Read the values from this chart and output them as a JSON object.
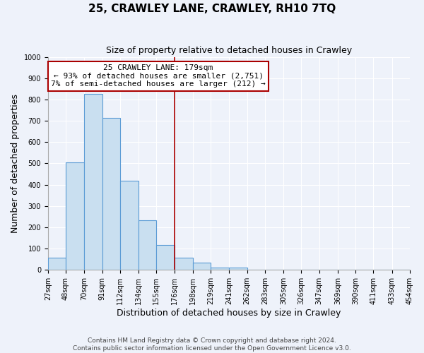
{
  "title": "25, CRAWLEY LANE, CRAWLEY, RH10 7TQ",
  "subtitle": "Size of property relative to detached houses in Crawley",
  "xlabel": "Distribution of detached houses by size in Crawley",
  "ylabel": "Number of detached properties",
  "footer_lines": [
    "Contains HM Land Registry data © Crown copyright and database right 2024.",
    "Contains public sector information licensed under the Open Government Licence v3.0."
  ],
  "bin_edges": [
    27,
    48,
    70,
    91,
    112,
    134,
    155,
    176,
    198,
    219,
    241,
    262,
    283,
    305,
    326,
    347,
    369,
    390,
    411,
    433,
    454
  ],
  "bin_labels": [
    "27sqm",
    "48sqm",
    "70sqm",
    "91sqm",
    "112sqm",
    "134sqm",
    "155sqm",
    "176sqm",
    "198sqm",
    "219sqm",
    "241sqm",
    "262sqm",
    "283sqm",
    "305sqm",
    "326sqm",
    "347sqm",
    "369sqm",
    "390sqm",
    "411sqm",
    "433sqm",
    "454sqm"
  ],
  "counts": [
    57,
    505,
    825,
    713,
    418,
    234,
    118,
    57,
    35,
    12,
    12,
    0,
    0,
    0,
    0,
    0,
    0,
    0,
    0,
    0
  ],
  "bar_color": "#c9dff0",
  "bar_edge_color": "#5b9bd5",
  "vline_x": 176,
  "vline_color": "#aa0000",
  "annotation_title": "25 CRAWLEY LANE: 179sqm",
  "annotation_line1": "← 93% of detached houses are smaller (2,751)",
  "annotation_line2": "7% of semi-detached houses are larger (212) →",
  "annotation_box_color": "#ffffff",
  "annotation_box_edge": "#aa0000",
  "ylim": [
    0,
    1000
  ],
  "yticks": [
    0,
    100,
    200,
    300,
    400,
    500,
    600,
    700,
    800,
    900,
    1000
  ],
  "background_color": "#eef2fa",
  "grid_color": "#ffffff",
  "title_fontsize": 11,
  "subtitle_fontsize": 9,
  "ylabel_fontsize": 9,
  "xlabel_fontsize": 9,
  "tick_fontsize": 7,
  "footer_fontsize": 6.5
}
